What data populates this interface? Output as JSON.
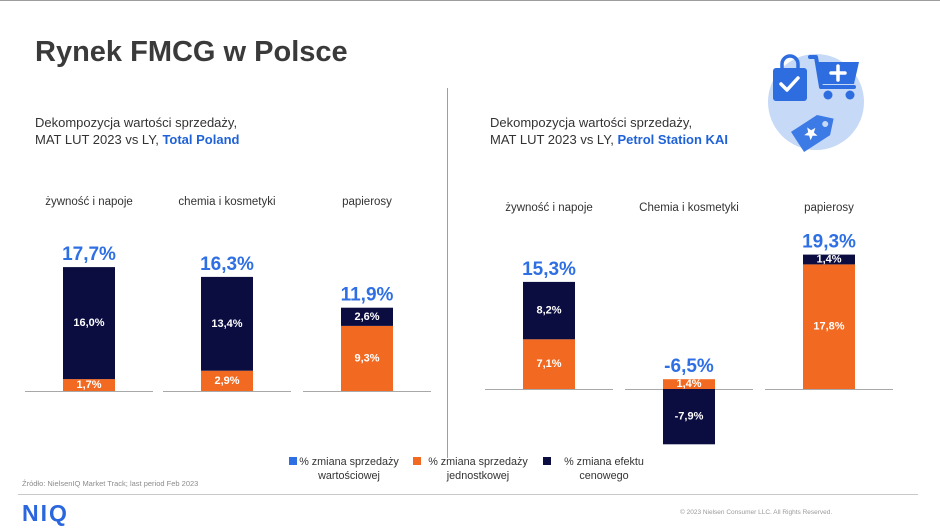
{
  "title": "Rynek FMCG w Polsce",
  "header_icon": "shopping-icon",
  "colors": {
    "title": "#3a3a3a",
    "highlight": "#1f62d8",
    "logo": "#2a66dd",
    "icon_background": "#c6d9f7",
    "icon_foreground": "#2e6de0"
  },
  "chart_data": {
    "type": "bar",
    "stacked": true,
    "legend": [
      {
        "name": "% zmiana sprzedaży wartościowej",
        "color": "#2f6fe4"
      },
      {
        "name": "% zmiana sprzedaży jednostkowej",
        "color": "#f26a21"
      },
      {
        "name": "% zmiana efektu cenowego",
        "color": "#0b0c40"
      }
    ],
    "panels": [
      {
        "title_line1": "Dekompozycja wartości sprzedaży,",
        "title_line2": "MAT LUT 2023 vs LY,",
        "title_highlight": "Total Poland",
        "categories": [
          "żywność i napoje",
          "chemia i kosmetyki",
          "papierosy"
        ],
        "series": [
          {
            "values": [
              17.7,
              16.3,
              11.9
            ],
            "labels": [
              "17,7%",
              "16,3%",
              "11,9%"
            ]
          },
          {
            "values": [
              1.7,
              2.9,
              9.3
            ],
            "labels": [
              "1,7%",
              "2,9%",
              "9,3%"
            ]
          },
          {
            "values": [
              16.0,
              13.4,
              2.6
            ],
            "labels": [
              "16,0%",
              "13,4%",
              "2,6%"
            ]
          }
        ]
      },
      {
        "title_line1": "Dekompozycja wartości sprzedaży,",
        "title_line2": "MAT LUT 2023 vs LY,",
        "title_highlight": "Petrol Station KAI",
        "categories": [
          "żywność i napoje",
          "Chemia i kosmetyki",
          "papierosy"
        ],
        "series": [
          {
            "values": [
              15.3,
              -6.5,
              19.3
            ],
            "labels": [
              "15,3%",
              "-6,5%",
              "19,3%"
            ]
          },
          {
            "values": [
              7.1,
              1.4,
              17.8
            ],
            "labels": [
              "7,1%",
              "1,4%",
              "17,8%"
            ]
          },
          {
            "values": [
              8.2,
              -7.9,
              1.4
            ],
            "labels": [
              "8,2%",
              "-7,9%",
              "1,4%"
            ]
          }
        ]
      }
    ]
  },
  "source": "Źródło: NielsenIQ Market Track; last period Feb 2023",
  "logo": "NIQ",
  "copyright": "© 2023 Nielsen Consumer LLC. All Rights Reserved."
}
